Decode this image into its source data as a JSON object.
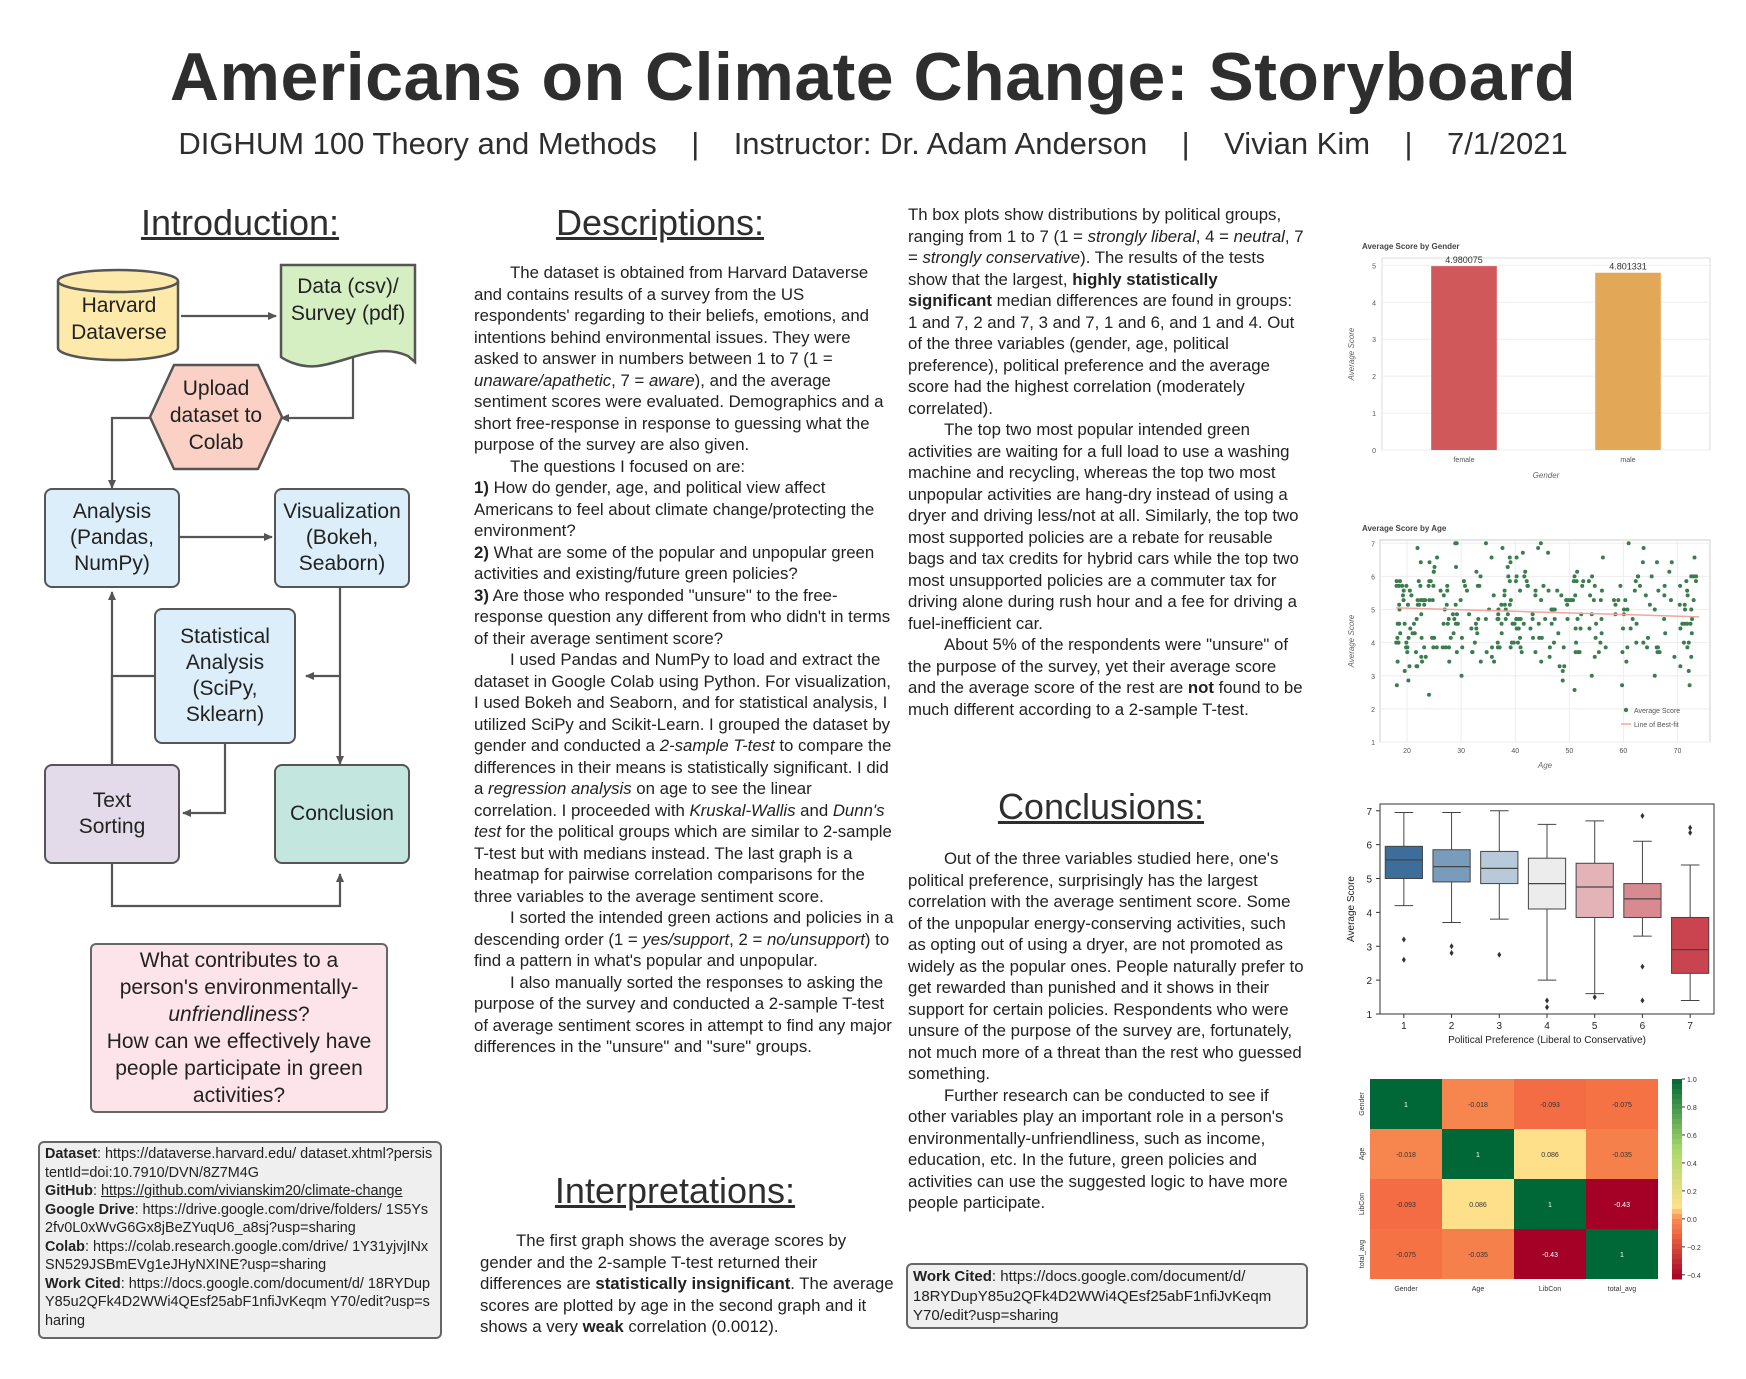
{
  "header": {
    "title": "Americans on Climate Change: Storyboard",
    "subtitle": "DIGHUM 100 Theory and Methods    |    Instructor: Dr. Adam Anderson    |    Vivian Kim    |    7/1/2021"
  },
  "headings": {
    "introduction": "Introduction:",
    "descriptions": "Descriptions:",
    "interpretations": "Interpretations:",
    "conclusions": "Conclusions:"
  },
  "flowchart": {
    "harvard": "Harvard Dataverse",
    "data": "Data (csv)/ Survey (pdf)",
    "upload": "Upload dataset to Colab",
    "analysis": "Analysis (Pandas, NumPy)",
    "visualization": "Visualization (Bokeh, Seaborn)",
    "statistical": "Statistical Analysis (SciPy, Sklearn)",
    "text_sorting": "Text Sorting",
    "conclusion": "Conclusion",
    "colors": {
      "harvard": "#fde9a9",
      "data": "#d5efc3",
      "upload": "#fbd1c6",
      "blue": "#dbeefa",
      "text": "#e3dbea",
      "conclusion": "#c3e7df"
    }
  },
  "question": {
    "line1": "What contributes to a person's environmentally-",
    "line2": "unfriendliness",
    "line3": "?",
    "line4": "How can we effectively have people participate in green activities?"
  },
  "links": {
    "dataset_label": "Dataset",
    "dataset": ": https://dataverse.harvard.edu/ dataset.xhtml?persistentId=doi:10.7910/DVN/8Z7M4G",
    "github_label": "GitHub",
    "github": "https://github.com/vivianskim20/climate-change",
    "drive_label": "Google Drive",
    "drive": ": https://drive.google.com/drive/folders/ 1S5Ys2fv0L0xWvG6Gx8jBeZYuqU6_a8sj?usp=sharing",
    "colab_label": "Colab",
    "colab": ": https://colab.research.google.com/drive/ 1Y31yjvjINxSN529JSBmEVg1eJHyNXINE?usp=sharing",
    "cited_label": "Work Cited",
    "cited": ": https://docs.google.com/document/d/ 18RYDupY85u2QFk4D2WWi4QEsf25abF1nfiJvKeqm Y70/edit?usp=sharing"
  },
  "descriptions": {
    "p1": "The dataset is obtained from Harvard Dataverse and contains results of a survey from the US respondents' regarding to their beliefs, emotions, and intentions behind environmental issues. They were asked to answer in numbers between 1 to 7 (1 = ",
    "p1_em1": "unaware/apathetic",
    "p1_mid": ", 7 = ",
    "p1_em2": "aware",
    "p1_end": "), and the average sentiment scores were evaluated. Demographics and a short free-response in response to guessing what the purpose of the survey are also given.",
    "p2": "The questions I focused on are:",
    "q1_num": "1)",
    "q1": " How do gender, age, and political view affect Americans to feel about climate change/protecting the environment?",
    "q2_num": "2)",
    "q2": " What are some of the popular and unpopular green activities and existing/future green policies?",
    "q3_num": "3)",
    "q3": " Are those who responded \"unsure\" to the free-response question any different from who didn't in terms of their average sentiment score?",
    "p3a": "I used Pandas and NumPy to load and extract the dataset in Google Colab using Python. For visualization, I used Bokeh and Seaborn, and for statistical analysis, I utilized SciPy and Scikit-Learn. I grouped the dataset by gender and conducted a ",
    "p3_em1": "2-sample T-test",
    "p3b": " to compare the differences in their means is statistically significant. I did a ",
    "p3_em2": "regression analysis",
    "p3c": " on age to see the linear correlation. I proceeded with ",
    "p3_em3": "Kruskal-Wallis",
    "p3d": " and ",
    "p3_em4": "Dunn's test",
    "p3e": " for the political groups which are similar to 2-sample T-test but with medians instead. The last graph is a heatmap for pairwise correlation comparisons for the three variables to the average sentiment score.",
    "p4a": "I sorted the intended green actions and policies in a descending order (1 = ",
    "p4_em1": "yes/support",
    "p4b": ", 2 = ",
    "p4_em2": "no/unsupport",
    "p4c": ") to find a pattern in what's popular and unpopular.",
    "p5": "I also manually sorted the responses to asking the purpose of the survey and conducted a 2-sample T-test of average sentiment scores in attempt to find any major differences in the \"unsure\" and \"sure\" groups."
  },
  "interpretations": {
    "a": "The first graph shows the average scores by gender and the 2-sample T-test returned their differences are ",
    "b1": "statistically insignificant",
    "c": ". The average scores are plotted by age in the second graph and it shows a very ",
    "b2": "weak",
    "d": " correlation (0.0012)."
  },
  "column3": {
    "a": "Th box plots show distributions by political groups, ranging from 1 to 7 (1 = ",
    "em1": "strongly liberal",
    "b": ", 4 = ",
    "em2": "neutral",
    "c": ", 7 = ",
    "em3": "strongly conservative",
    "d": "). The results of the tests show that the largest, ",
    "b1": "highly statistically significant",
    "e": " median differences are found in groups: 1 and 7, 2 and 7, 3 and 7, 1 and 6, and 1 and 4. Out of the three variables (gender, age, political preference), political preference and the average score had the highest correlation (moderately correlated).",
    "p2": "The top two most popular intended green activities are waiting for a full load to use a washing machine and recycling, whereas the top two most unpopular activities are hang-dry instead of using a dryer and driving less/not at all. Similarly, the top two most supported policies are a rebate for reusable bags and tax credits for hybrid cars while the top two most unsupported policies are a commuter tax for driving alone during rush hour and a fee for driving a fuel-inefficient car.",
    "p3a": "About 5% of the respondents were \"unsure\" of the purpose of the survey, yet their average score and the average score of the rest are ",
    "p3b": "not",
    "p3c": " found to be much different according to a 2-sample T-test."
  },
  "conclusions": {
    "p1": "Out of the three variables studied here, one's political preference, surprisingly has the largest correlation with the average sentiment score. Some of the unpopular energy-conserving activities, such as opting out of using a dryer, are not promoted as widely as the popular ones. People naturally prefer to get rewarded than punished and it shows in their support for certain policies. Respondents who were unsure of the purpose of the survey are, fortunately, not much more of a threat than the rest who guessed something.",
    "p2": "Further research can be conducted to see if other variables play an important role in a person's environmentally-unfriendliness, such as income, education, etc. In the future, green policies and activities can use the suggested logic to have more people participate.",
    "cited_label": "Work Cited",
    "cited": ": https://docs.google.com/document/d/ 18RYDupY85u2QFk4D2WWi4QEsf25abF1nfiJvKeqm Y70/edit?usp=sharing"
  },
  "chart_data": [
    {
      "type": "bar",
      "title": "Average Score by Gender",
      "xlabel": "Gender",
      "ylabel": "Average Score",
      "categories": [
        "female",
        "male"
      ],
      "values": [
        4.980075,
        4.801331
      ],
      "data_labels": [
        "4.980075",
        "4.801331"
      ],
      "ylim": [
        0,
        5.2
      ],
      "yticks": [
        "0",
        "1",
        "2",
        "3",
        "4",
        "5"
      ],
      "colors": [
        "#d0575a",
        "#e3a857"
      ],
      "grid": true
    },
    {
      "type": "scatter",
      "title": "Average Score by Age",
      "xlabel": "Age",
      "ylabel": "Average Score",
      "xlim": [
        15,
        76
      ],
      "ylim": [
        1,
        7.1
      ],
      "xticks": [
        "20",
        "30",
        "40",
        "50",
        "60",
        "70"
      ],
      "yticks": [
        "1",
        "2",
        "3",
        "4",
        "5",
        "6",
        "7"
      ],
      "legend": [
        "Average Score",
        "Line of Best-fit"
      ],
      "legend_position": "bottom-right",
      "fit_line": {
        "x": [
          18,
          74
        ],
        "y": [
          5.05,
          4.78
        ]
      },
      "point_color": "#3b7d4f",
      "fit_color": "#f2a6a0",
      "grid": true
    },
    {
      "type": "box",
      "xlabel": "Political Preference (Liberal to Conservative)",
      "ylabel": "Average Score",
      "categories": [
        "1",
        "2",
        "3",
        "4",
        "5",
        "6",
        "7"
      ],
      "ylim": [
        1,
        7.2
      ],
      "yticks": [
        "1",
        "2",
        "3",
        "4",
        "5",
        "6",
        "7"
      ],
      "boxes": [
        {
          "whislo": 4.2,
          "q1": 5.0,
          "med": 5.55,
          "q3": 5.95,
          "whishi": 6.95,
          "fliers": [
            3.2,
            2.6
          ],
          "color": "#3d6d9a"
        },
        {
          "whislo": 3.7,
          "q1": 4.9,
          "med": 5.35,
          "q3": 5.85,
          "whishi": 6.95,
          "fliers": [
            3.0,
            2.8
          ],
          "color": "#7a9cbc"
        },
        {
          "whislo": 3.8,
          "q1": 4.85,
          "med": 5.3,
          "q3": 5.8,
          "whishi": 7.0,
          "fliers": [
            2.75
          ],
          "color": "#b8cad9"
        },
        {
          "whislo": 2.0,
          "q1": 4.1,
          "med": 4.85,
          "q3": 5.6,
          "whishi": 6.6,
          "fliers": [
            1.4,
            1.2
          ],
          "color": "#ececec"
        },
        {
          "whislo": 1.6,
          "q1": 3.85,
          "med": 4.75,
          "q3": 5.45,
          "whishi": 6.7,
          "fliers": [
            1.5
          ],
          "color": "#e3b3b8"
        },
        {
          "whislo": 3.3,
          "q1": 3.85,
          "med": 4.4,
          "q3": 4.85,
          "whishi": 6.1,
          "fliers": [
            6.85,
            2.4,
            1.4
          ],
          "color": "#d98a90"
        },
        {
          "whislo": 1.4,
          "q1": 2.2,
          "med": 2.9,
          "q3": 3.85,
          "whishi": 5.4,
          "fliers": [
            6.5,
            6.35
          ],
          "color": "#c9444f"
        }
      ]
    },
    {
      "type": "heatmap",
      "labels": [
        "Gender",
        "Age",
        "LibCon",
        "total_avg"
      ],
      "values": [
        [
          1,
          -0.018,
          -0.093,
          -0.075
        ],
        [
          -0.018,
          1,
          0.086,
          -0.035
        ],
        [
          -0.093,
          0.086,
          1,
          -0.43
        ],
        [
          -0.075,
          -0.035,
          -0.43,
          1
        ]
      ],
      "colorbar_ticks": [
        "1.0",
        "0.8",
        "0.6",
        "0.4",
        "0.2",
        "0.0",
        "−0.2",
        "−0.4"
      ],
      "vmin": -0.43,
      "vmax": 1.0,
      "colormap": "RdYlGn"
    }
  ]
}
